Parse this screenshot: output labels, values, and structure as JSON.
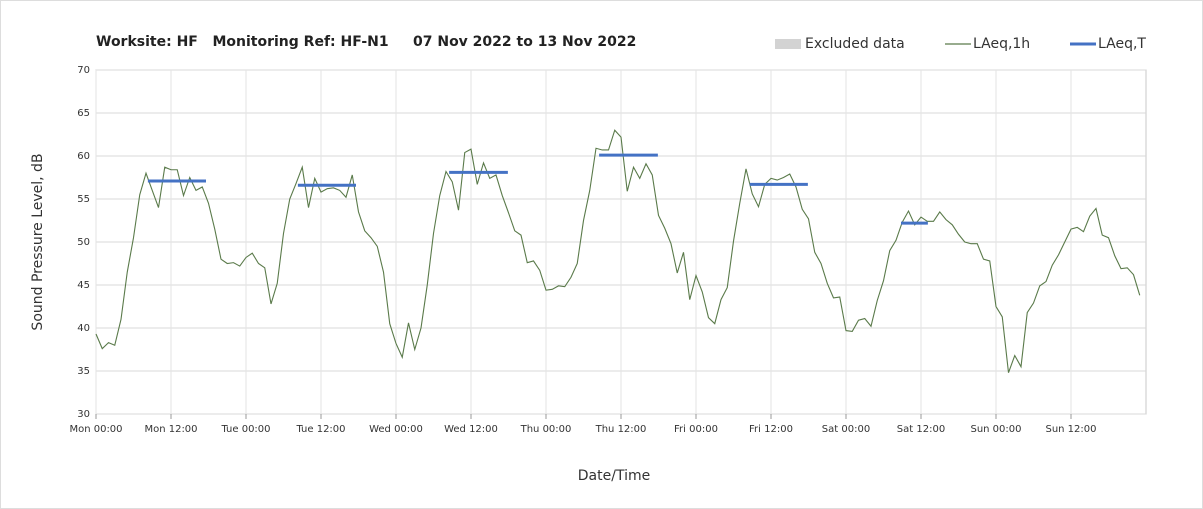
{
  "chart_data": {
    "type": "line",
    "title": "Worksite: HF   Monitoring Ref: HF-N1     07 Nov 2022 to 13 Nov 2022",
    "xlabel": "Date/Time",
    "ylabel": "Sound Pressure Level, dB",
    "legend_extra": {
      "name": "Excluded data",
      "color": "#d3d3d3"
    },
    "xlim": [
      0,
      168
    ],
    "xticks": [
      {
        "value": 0,
        "label": "Mon 00:00"
      },
      {
        "value": 12,
        "label": "Mon 12:00"
      },
      {
        "value": 24,
        "label": "Tue 00:00"
      },
      {
        "value": 36,
        "label": "Tue 12:00"
      },
      {
        "value": 48,
        "label": "Wed 00:00"
      },
      {
        "value": 60,
        "label": "Wed 12:00"
      },
      {
        "value": 72,
        "label": "Thu 00:00"
      },
      {
        "value": 84,
        "label": "Thu 12:00"
      },
      {
        "value": 96,
        "label": "Fri 00:00"
      },
      {
        "value": 108,
        "label": "Fri 12:00"
      },
      {
        "value": 120,
        "label": "Sat 00:00"
      },
      {
        "value": 132,
        "label": "Sat 12:00"
      },
      {
        "value": 144,
        "label": "Sun 00:00"
      },
      {
        "value": 156,
        "label": "Sun 12:00"
      }
    ],
    "ylim": [
      30,
      70
    ],
    "yticks": [
      30,
      35,
      40,
      45,
      50,
      55,
      60,
      65,
      70
    ],
    "grid": true,
    "x": [
      0,
      1,
      2,
      3,
      4,
      5,
      6,
      7,
      8,
      9,
      10,
      11,
      12,
      13,
      14,
      15,
      16,
      17,
      18,
      19,
      20,
      21,
      22,
      23,
      24,
      25,
      26,
      27,
      28,
      29,
      30,
      31,
      32,
      33,
      34,
      35,
      36,
      37,
      38,
      39,
      40,
      41,
      42,
      43,
      44,
      45,
      46,
      47,
      48,
      49,
      50,
      51,
      52,
      53,
      54,
      55,
      56,
      57,
      58,
      59,
      60,
      61,
      62,
      63,
      64,
      65,
      66,
      67,
      68,
      69,
      70,
      71,
      72,
      73,
      74,
      75,
      76,
      77,
      78,
      79,
      80,
      81,
      82,
      83,
      84,
      85,
      86,
      87,
      88,
      89,
      90,
      91,
      92,
      93,
      94,
      95,
      96,
      97,
      98,
      99,
      100,
      101,
      102,
      103,
      104,
      105,
      106,
      107,
      108,
      109,
      110,
      111,
      112,
      113,
      114,
      115,
      116,
      117,
      118,
      119,
      120,
      121,
      122,
      123,
      124,
      125,
      126,
      127,
      128,
      129,
      130,
      131,
      132,
      133,
      134,
      135,
      136,
      137,
      138,
      139,
      140,
      141,
      142,
      143,
      144,
      145,
      146,
      147,
      148,
      149,
      150,
      151,
      152,
      153,
      154,
      155,
      156,
      157,
      158,
      159,
      160,
      161,
      162,
      163,
      164,
      165,
      166,
      167
    ],
    "series": [
      {
        "name": "LAeq,1h",
        "color": "#5a7a4a",
        "values": [
          39.3,
          37.6,
          38.3,
          38.0,
          41,
          46.5,
          50.5,
          55.5,
          58,
          56,
          54,
          58.7,
          58.4,
          58.4,
          55.4,
          57.5,
          56,
          56.4,
          54.5,
          51.5,
          48,
          47.5,
          47.6,
          47.2,
          48.2,
          48.7,
          47.5,
          47,
          42.8,
          45.2,
          51,
          55,
          56.8,
          58.7,
          54,
          57.4,
          55.8,
          56.2,
          56.3,
          56,
          55.2,
          57.8,
          53.5,
          51.3,
          50.5,
          49.5,
          46.5,
          40.5,
          38.2,
          36.6,
          40.6,
          37.5,
          40,
          45,
          51,
          55.4,
          58.2,
          57,
          53.7,
          60.4,
          60.8,
          56.7,
          59.2,
          57.4,
          57.8,
          55.4,
          53.4,
          51.3,
          50.8,
          47.6,
          47.8,
          46.7,
          44.4,
          44.5,
          44.9,
          44.8,
          45.9,
          47.5,
          52.5,
          56,
          60.9,
          60.7,
          60.7,
          63,
          62.2,
          55.9,
          58.7,
          57.4,
          59.1,
          57.8,
          53.1,
          51.6,
          49.8,
          46.4,
          48.8,
          43.3,
          46.1,
          44.2,
          41.2,
          40.5,
          43.3,
          44.7,
          50.1,
          54.5,
          58.5,
          55.6,
          54.1,
          56.7,
          57.4,
          57.2,
          57.5,
          57.9,
          56.4,
          53.8,
          52.7,
          48.8,
          47.5,
          45.2,
          43.5,
          43.6,
          39.7,
          39.6,
          40.9,
          41.1,
          40.2,
          43.2,
          45.5,
          49,
          50.2,
          52.3,
          53.6,
          52,
          52.9,
          52.4,
          52.4,
          53.5,
          52.6,
          52,
          50.9,
          50,
          49.8,
          49.8,
          48,
          47.8,
          42.5,
          41.3,
          34.8,
          36.8,
          35.5,
          41.8,
          42.9,
          44.9,
          45.4,
          47.3,
          48.5,
          50,
          51.5,
          51.7,
          51.2,
          53,
          53.9,
          50.8,
          50.5,
          48.4,
          46.9,
          47,
          46.2,
          43.8
        ]
      },
      {
        "name": "LAeq,T",
        "color": "#4472c4",
        "periods": [
          {
            "start": 8.3,
            "end": 17.6,
            "value": 57.1
          },
          {
            "start": 32.3,
            "end": 41.6,
            "value": 56.6
          },
          {
            "start": 56.5,
            "end": 65.9,
            "value": 58.1
          },
          {
            "start": 80.5,
            "end": 89.9,
            "value": 60.1
          },
          {
            "start": 104.6,
            "end": 113.9,
            "value": 56.7
          },
          {
            "start": 128.8,
            "end": 133.1,
            "value": 52.2
          }
        ]
      }
    ]
  }
}
